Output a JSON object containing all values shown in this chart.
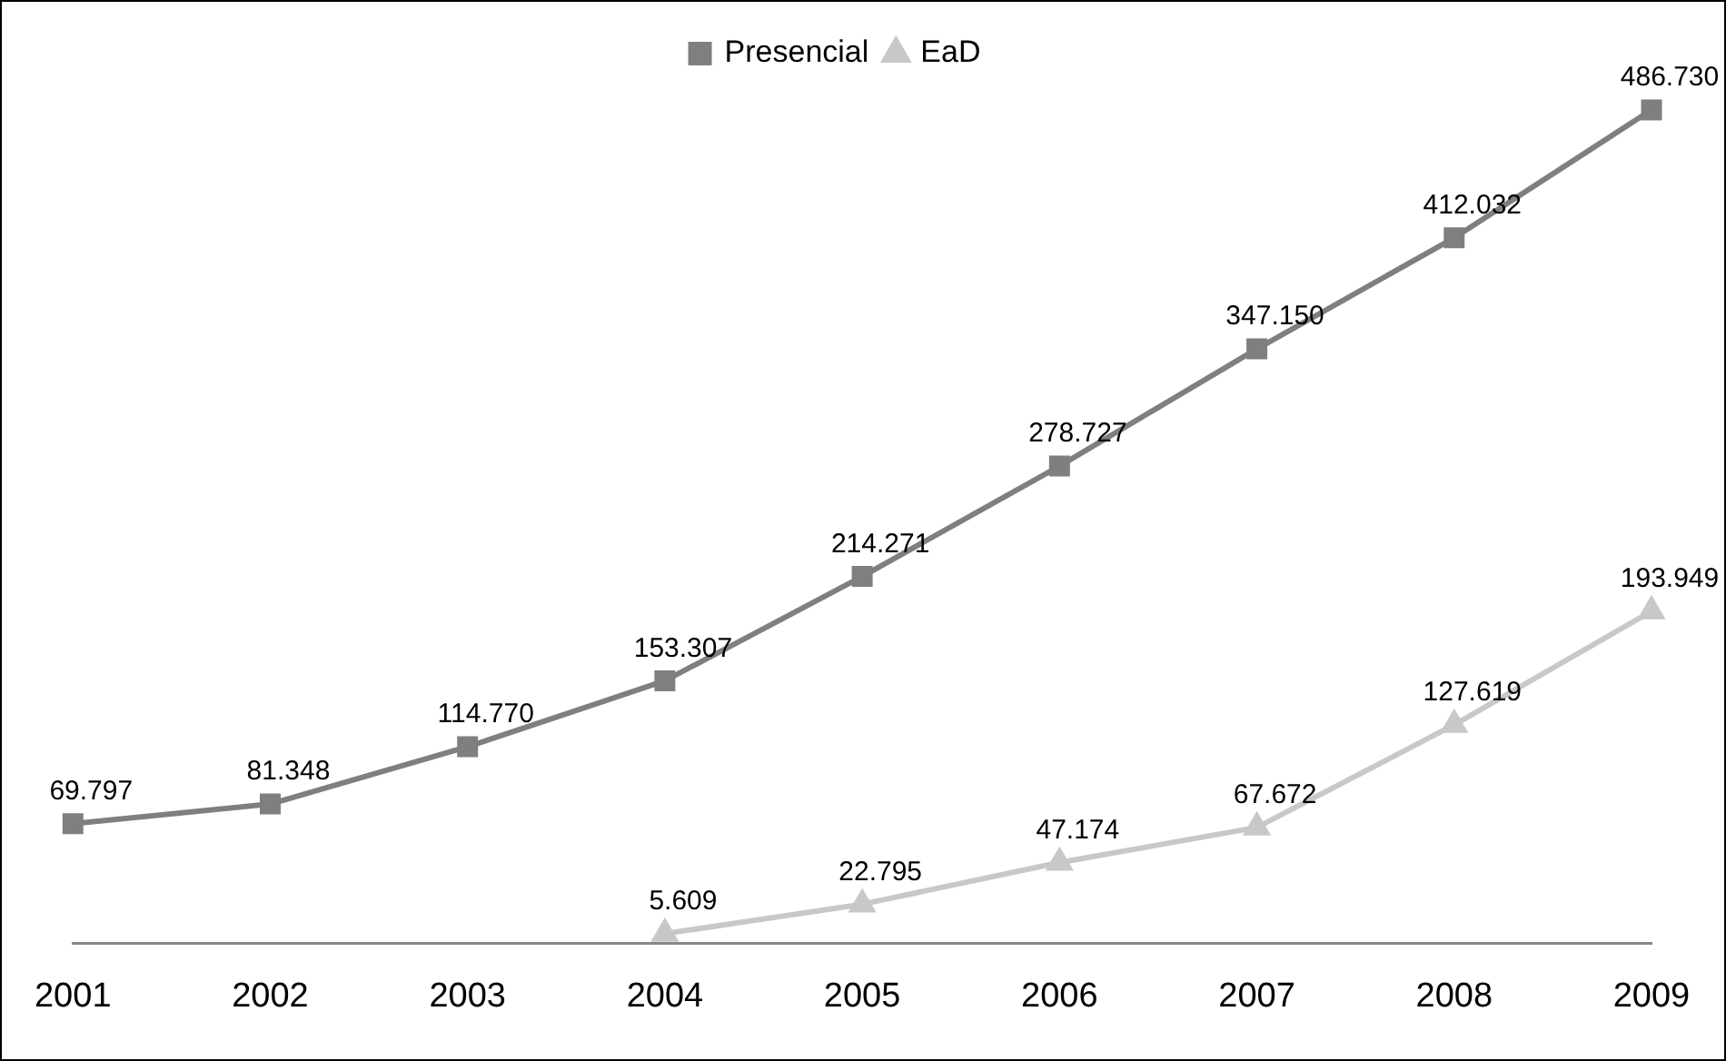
{
  "chart_data": {
    "type": "line",
    "categories": [
      "2001",
      "2002",
      "2003",
      "2004",
      "2005",
      "2006",
      "2007",
      "2008",
      "2009"
    ],
    "series": [
      {
        "name": "Presencial",
        "color": "#7f7f7f",
        "marker": "square",
        "values": [
          69797,
          81348,
          114770,
          153307,
          214271,
          278727,
          347150,
          412032,
          486730
        ],
        "value_labels": [
          "69.797",
          "81.348",
          "114.770",
          "153.307",
          "214.271",
          "278.727",
          "347.150",
          "412.032",
          "486.730"
        ]
      },
      {
        "name": "EaD",
        "color": "#c8c8c8",
        "marker": "triangle",
        "values": [
          null,
          null,
          null,
          5609,
          22795,
          47174,
          67672,
          127619,
          193949
        ],
        "value_labels": [
          null,
          null,
          null,
          "5.609",
          "22.795",
          "47.174",
          "67.672",
          "127.619",
          "193.949"
        ]
      }
    ],
    "grid": false,
    "legend": "top",
    "line_style": "solid"
  }
}
